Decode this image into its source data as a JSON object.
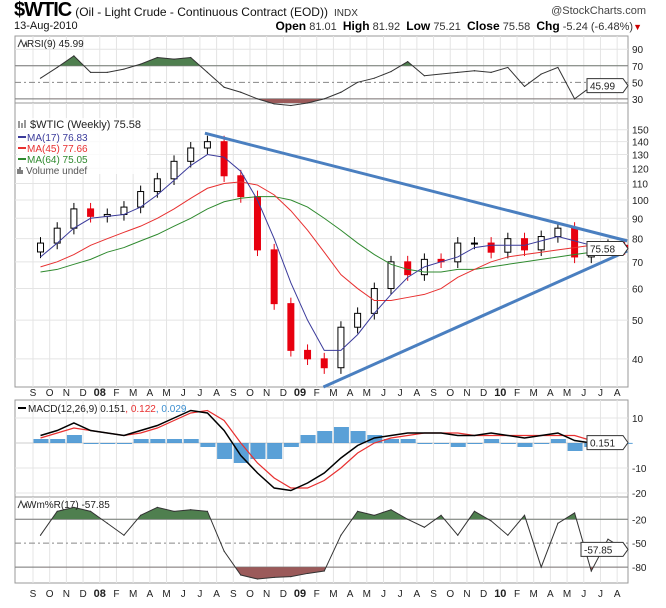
{
  "header": {
    "symbol": "$WTIC",
    "description": "(Oil - Light Crude - Continuous Contract (EOD))",
    "exchange": "INDX",
    "copyright": "@StockCharts.com",
    "date": "13-Aug-2010",
    "open_label": "Open",
    "open": "81.01",
    "high_label": "High",
    "high": "81.92",
    "low_label": "Low",
    "low": "75.21",
    "close_label": "Close",
    "close": "75.58",
    "chg_label": "Chg",
    "chg": "-5.24 (-6.48%)",
    "chg_arrow": "▼"
  },
  "colors": {
    "up": "#000000",
    "down": "#e8000f",
    "ma17": "#3b3b9b",
    "ma45": "#e83030",
    "ma64": "#2f8a2f",
    "trend": "#4a7fc0",
    "overbought": "#4f7f4f",
    "oversold": "#9b5a5a",
    "hist": "#3d8fd0",
    "macd": "#000000",
    "signal": "#e83030",
    "signal_text": "#e83030",
    "hist_text": "#3d8fd0"
  },
  "chart_data": {
    "type": "candlestick",
    "months": [
      "S",
      "O",
      "N",
      "D",
      "08",
      "F",
      "M",
      "A",
      "M",
      "J",
      "J",
      "A",
      "S",
      "O",
      "N",
      "D",
      "09",
      "F",
      "M",
      "A",
      "M",
      "J",
      "J",
      "A",
      "S",
      "O",
      "N",
      "D",
      "10",
      "F",
      "M",
      "A",
      "M",
      "J",
      "J",
      "A"
    ],
    "bold_months": [
      "08",
      "09",
      "10"
    ],
    "panels": {
      "rsi": {
        "legend": "RSI(9) 45.99",
        "last_tag": "45.99",
        "ticks": [
          90,
          70,
          50,
          30
        ],
        "ylim": [
          25,
          106
        ],
        "upper": 70,
        "lower": 30,
        "mid": 50,
        "values": [
          55,
          68,
          82,
          62,
          62,
          66,
          72,
          80,
          78,
          80,
          62,
          44,
          38,
          30,
          24,
          22,
          25,
          30,
          38,
          50,
          55,
          63,
          75,
          58,
          60,
          62,
          64,
          62,
          68,
          45,
          60,
          68,
          30,
          45,
          52,
          45.99
        ]
      },
      "price": {
        "legend": "$WTIC (Weekly) 75.58",
        "ma17_legend": "MA(17) 76.83",
        "ma45_legend": "MA(45) 77.66",
        "ma64_legend": "MA(64) 75.05",
        "volume_legend": "Volume undef",
        "last_tag": "75.58",
        "scale": "log",
        "ticks": [
          150,
          140,
          130,
          120,
          110,
          100,
          90,
          80,
          70,
          60,
          50,
          40
        ],
        "ylim": [
          34,
          175
        ],
        "close": [
          78,
          85,
          95,
          91,
          92,
          96,
          105,
          113,
          125,
          135,
          140,
          115,
          102,
          75,
          55,
          42,
          40,
          38,
          48,
          52,
          60,
          70,
          65,
          71,
          70,
          78,
          78,
          74,
          80,
          75,
          81,
          85,
          72,
          75,
          77,
          75.58
        ],
        "ma17": [
          72,
          78,
          85,
          90,
          91,
          92,
          96,
          103,
          112,
          122,
          130,
          128,
          118,
          100,
          80,
          62,
          50,
          42,
          42,
          46,
          52,
          58,
          64,
          68,
          70,
          72,
          76,
          77,
          77,
          77,
          79,
          81,
          79,
          77,
          76,
          76.83
        ],
        "ma45": [
          68,
          70,
          73,
          77,
          80,
          83,
          86,
          90,
          95,
          101,
          107,
          110,
          111,
          109,
          103,
          94,
          84,
          74,
          65,
          60,
          56,
          56,
          57,
          58,
          60,
          64,
          67,
          70,
          72,
          73,
          74,
          75,
          76,
          77,
          77,
          77.66
        ],
        "ma64": [
          66,
          67,
          69,
          71,
          74,
          76,
          79,
          82,
          86,
          90,
          95,
          99,
          101,
          102,
          102,
          100,
          96,
          90,
          84,
          78,
          73,
          69,
          67,
          66,
          66,
          67,
          67,
          68,
          69,
          70,
          71,
          72,
          73,
          74,
          75,
          75.05
        ],
        "trendlines": [
          {
            "from": [
              10.3,
              147
            ],
            "to": [
              35.6,
              79
            ]
          },
          {
            "from": [
              17.4,
              34
            ],
            "to": [
              35.6,
              74.5
            ]
          }
        ]
      },
      "macd": {
        "legend_main": "MACD(12,26,9) 0.151",
        "legend_signal": ", 0.122",
        "legend_hist": ", 0.029",
        "last_tag": "0.151",
        "ticks": [
          10,
          -10,
          -20
        ],
        "ylim": [
          -21.6,
          17.2
        ],
        "macd": [
          3,
          5,
          8,
          5,
          4,
          3,
          5,
          7,
          10,
          13,
          12,
          5,
          -5,
          -12,
          -18,
          -19,
          -16,
          -12,
          -6,
          -1,
          2,
          3,
          4,
          4,
          4,
          3,
          3,
          4,
          3,
          2,
          3,
          4,
          1,
          0,
          0,
          0.151
        ],
        "signal": [
          2,
          4,
          6,
          5,
          4,
          3,
          4,
          6,
          9,
          12,
          13,
          9,
          0,
          -8,
          -14,
          -18,
          -18,
          -15,
          -10,
          -4,
          0,
          2,
          3,
          4,
          4,
          4,
          3,
          3,
          3,
          3,
          3,
          3,
          3,
          1,
          0,
          0.122
        ]
      },
      "willr": {
        "legend": "Wm%R(17) -57.85",
        "last_tag": "-57.85",
        "ticks": [
          -20,
          -50,
          -80
        ],
        "ylim": [
          -100,
          8
        ],
        "upper": -20,
        "lower": -80,
        "mid": -50,
        "values": [
          -40,
          -10,
          -5,
          -10,
          -25,
          -40,
          -15,
          -5,
          -10,
          -8,
          -10,
          -60,
          -90,
          -95,
          -93,
          -92,
          -88,
          -85,
          -40,
          -10,
          -15,
          -8,
          -20,
          -30,
          -15,
          -40,
          -10,
          -22,
          -40,
          -15,
          -80,
          -25,
          -12,
          -85,
          -45,
          -57.85
        ]
      }
    }
  }
}
